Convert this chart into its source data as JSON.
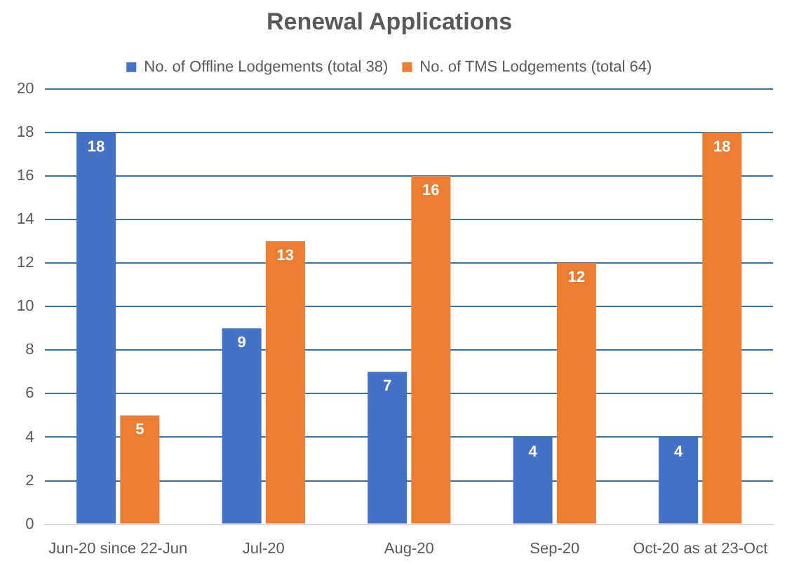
{
  "chart_data": {
    "type": "bar",
    "title": "Renewal Applications",
    "categories": [
      "Jun-20 since 22-Jun",
      "Jul-20",
      "Aug-20",
      "Sep-20",
      "Oct-20 as at 23-Oct"
    ],
    "series": [
      {
        "name": "No. of Offline Lodgements (total 38)",
        "color": "#4472c4",
        "values": [
          18,
          9,
          7,
          4,
          4
        ]
      },
      {
        "name": "No. of TMS Lodgements (total 64)",
        "color": "#ed7d31",
        "values": [
          5,
          13,
          16,
          12,
          18
        ]
      }
    ],
    "ylim": [
      0,
      20
    ],
    "yticks": [
      0,
      2,
      4,
      6,
      8,
      10,
      12,
      14,
      16,
      18,
      20
    ],
    "grid": "y",
    "legend": "top",
    "data_labels": true
  }
}
